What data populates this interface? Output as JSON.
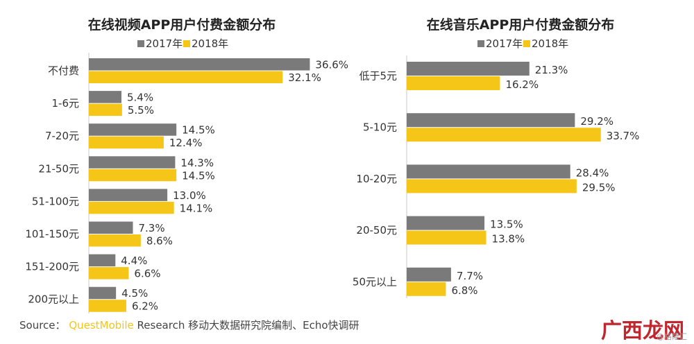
{
  "colors": {
    "y2017": "#7a7a7a",
    "y2018": "#f5c518"
  },
  "chart_data": [
    {
      "type": "bar",
      "orientation": "horizontal",
      "title": "在线视频APP用户付费金额分布",
      "legend": [
        "2017年",
        "2018年"
      ],
      "legend_position": "top",
      "categories": [
        "不付费",
        "1-6元",
        "7-20元",
        "21-50元",
        "51-100元",
        "101-150元",
        "151-200元",
        "200元以上"
      ],
      "series": [
        {
          "name": "2017年",
          "values": [
            36.6,
            5.4,
            14.5,
            14.3,
            13.0,
            7.3,
            4.4,
            4.5
          ]
        },
        {
          "name": "2018年",
          "values": [
            32.1,
            5.5,
            12.4,
            14.5,
            14.1,
            8.6,
            6.6,
            6.2
          ]
        }
      ],
      "value_suffix": "%",
      "grid": false
    },
    {
      "type": "bar",
      "orientation": "horizontal",
      "title": "在线音乐APP用户付费金额分布",
      "legend": [
        "2017年",
        "2018年"
      ],
      "legend_position": "top",
      "categories": [
        "低于5元",
        "5-10元",
        "10-20元",
        "20-50元",
        "50元以上"
      ],
      "series": [
        {
          "name": "2017年",
          "values": [
            21.3,
            29.2,
            28.4,
            13.5,
            7.7
          ]
        },
        {
          "name": "2018年",
          "values": [
            16.2,
            33.7,
            29.5,
            13.8,
            6.8
          ]
        }
      ],
      "value_suffix": "%",
      "grid": false
    }
  ],
  "footer": {
    "source_prefix": "Source：",
    "source_brand": "QuestMobile",
    "source_rest": " Research 移动大数据研究院编制、Echo快调研"
  },
  "watermark": {
    "brand": "广西龙网",
    "sub": "@格隆汇"
  }
}
